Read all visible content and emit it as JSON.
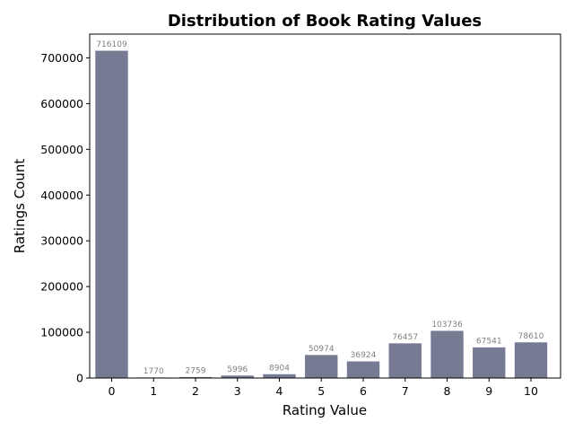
{
  "chart_data": {
    "type": "bar",
    "title": "Distribution of Book Rating Values",
    "xlabel": "Rating Value",
    "ylabel": "Ratings Count",
    "categories": [
      "0",
      "1",
      "2",
      "3",
      "4",
      "5",
      "6",
      "7",
      "8",
      "9",
      "10"
    ],
    "values": [
      716109,
      1770,
      2759,
      5996,
      8904,
      50974,
      36924,
      76457,
      103736,
      67541,
      78610
    ],
    "data_labels": [
      "716109",
      "1770",
      "2759",
      "5996",
      "8904",
      "50974",
      "36924",
      "76457",
      "103736",
      "67541",
      "78610"
    ],
    "ylim": [
      0,
      751914
    ],
    "yticks": [
      0,
      100000,
      200000,
      300000,
      400000,
      500000,
      600000,
      700000
    ],
    "ytick_labels": [
      "0",
      "100000",
      "200000",
      "300000",
      "400000",
      "500000",
      "600000",
      "700000"
    ],
    "bar_color": "#767a93",
    "grid": false,
    "legend": "none"
  }
}
